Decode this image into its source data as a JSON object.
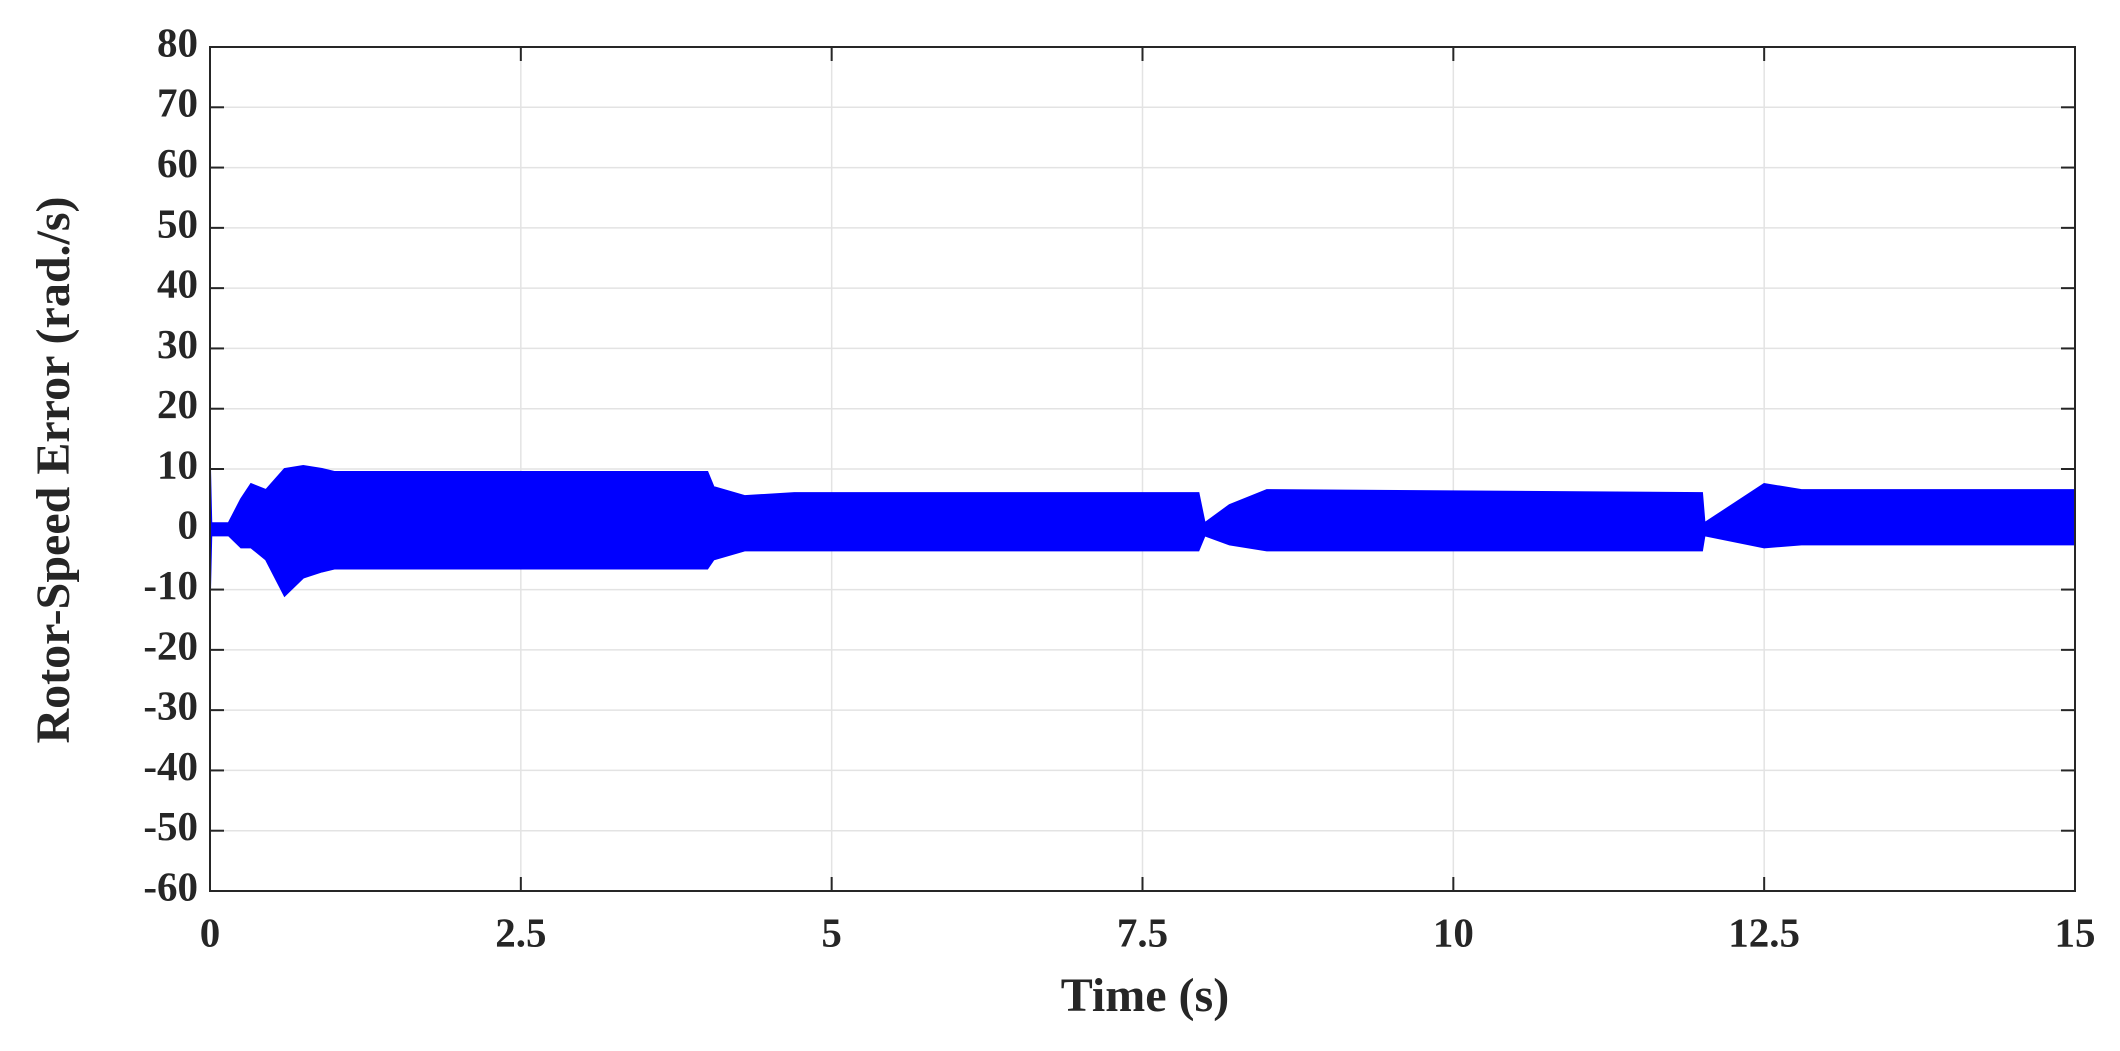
{
  "chart_data": {
    "type": "band",
    "xlabel": "Time (s)",
    "ylabel": "Rotor-Speed Error (rad./s)",
    "x": [
      0,
      0.01,
      0.15,
      0.25,
      0.33,
      0.45,
      0.6,
      0.75,
      0.9,
      1.0,
      1.3,
      4.0,
      4.05,
      4.3,
      4.7,
      7.95,
      8.0,
      8.2,
      8.5,
      12.0,
      12.02,
      12.5,
      12.8,
      15
    ],
    "upper": [
      10,
      1,
      1,
      5,
      7.5,
      6.5,
      10,
      10.5,
      10,
      9.5,
      9.5,
      9.5,
      7,
      5.5,
      6,
      6,
      1,
      4,
      6.5,
      6,
      1,
      7.5,
      6.5,
      6.5
    ],
    "lower": [
      -10,
      -1,
      -1,
      -3,
      -3,
      -5,
      -11,
      -8,
      -7,
      -6.5,
      -6.5,
      -6.5,
      -5,
      -3.5,
      -3.5,
      -3.5,
      -1,
      -2.5,
      -3.5,
      -3.5,
      -1,
      -3,
      -2.5,
      -2.5
    ],
    "color": "#0000ff",
    "xlim": [
      0,
      15
    ],
    "xticks": [
      0,
      2.5,
      5,
      7.5,
      10,
      12.5,
      15
    ],
    "ylim": [
      -60,
      80
    ],
    "yticks": [
      -60,
      -50,
      -40,
      -30,
      -20,
      -10,
      0,
      10,
      20,
      30,
      40,
      50,
      60,
      70,
      80
    ],
    "grid": true
  }
}
